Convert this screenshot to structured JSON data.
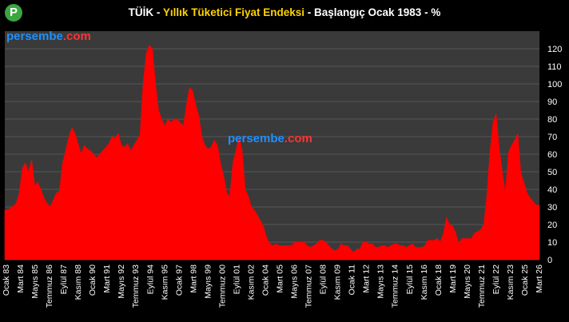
{
  "header": {
    "title_prefix": "TÜİK - ",
    "title_highlight": "Yıllık Tüketici Fiyat Endeksi",
    "title_suffix": " - Başlangıç Ocak 1983 - %"
  },
  "watermark": {
    "part1": "persembe",
    "part2": ".com"
  },
  "logo": {
    "letter": "P"
  },
  "colors": {
    "background": "#000000",
    "plot_bg": "#3a3a3a",
    "grid": "#555555",
    "area": "#ff0000",
    "title_highlight": "#ffd400",
    "watermark_blue": "#1e90ff",
    "watermark_red": "#ff3333",
    "logo_green": "#3aa640"
  },
  "chart_data": {
    "type": "area",
    "title": "TÜİK - Yıllık Tüketici Fiyat Endeksi - Başlangıç Ocak 1983 - %",
    "xlabel": "",
    "ylabel": "",
    "ylim": [
      0,
      130
    ],
    "yticks": [
      0,
      10,
      20,
      30,
      40,
      50,
      60,
      70,
      80,
      90,
      100,
      110,
      120
    ],
    "y_axis_side": "right",
    "grid": true,
    "x_tick_labels": [
      "Ocak 83",
      "Mart 84",
      "Mayıs 85",
      "Temmuz 86",
      "Eylül 87",
      "Kasım 88",
      "Ocak 90",
      "Mart 91",
      "Mayıs 92",
      "Temmuz 93",
      "Eylül 94",
      "Kasım 95",
      "Ocak 97",
      "Mart 98",
      "Mayıs 99",
      "Temmuz 00",
      "Eylül 01",
      "Kasım 02",
      "Ocak 04",
      "Mart 05",
      "Mayıs 06",
      "Temmuz 07",
      "Eylül 08",
      "Kasım 09",
      "Ocak 11",
      "Mart 12",
      "Mayıs 13",
      "Temmuz 14",
      "Eylül 15",
      "Kasım 16",
      "Ocak 18",
      "Mart 19",
      "Mayıs 20",
      "Temmuz 21",
      "Eylül 22",
      "Kasım 23",
      "Ocak 25",
      "Mart 26"
    ],
    "series": [
      {
        "x_start": "1983-01",
        "x_end": "2026-03",
        "points": [
          [
            "1983-01",
            28
          ],
          [
            "1983-06",
            29
          ],
          [
            "1983-12",
            32
          ],
          [
            "1984-03",
            38
          ],
          [
            "1984-06",
            52
          ],
          [
            "1984-09",
            55
          ],
          [
            "1984-12",
            50
          ],
          [
            "1985-03",
            57
          ],
          [
            "1985-06",
            42
          ],
          [
            "1985-09",
            44
          ],
          [
            "1985-12",
            40
          ],
          [
            "1986-03",
            35
          ],
          [
            "1986-06",
            32
          ],
          [
            "1986-09",
            30
          ],
          [
            "1986-12",
            34
          ],
          [
            "1987-03",
            38
          ],
          [
            "1987-06",
            39
          ],
          [
            "1987-09",
            55
          ],
          [
            "1987-12",
            62
          ],
          [
            "1988-03",
            70
          ],
          [
            "1988-06",
            75
          ],
          [
            "1988-09",
            72
          ],
          [
            "1988-12",
            66
          ],
          [
            "1989-03",
            60
          ],
          [
            "1989-06",
            65
          ],
          [
            "1989-09",
            63
          ],
          [
            "1989-12",
            62
          ],
          [
            "1990-03",
            60
          ],
          [
            "1990-06",
            58
          ],
          [
            "1990-09",
            60
          ],
          [
            "1990-12",
            62
          ],
          [
            "1991-03",
            64
          ],
          [
            "1991-06",
            66
          ],
          [
            "1991-09",
            70
          ],
          [
            "1991-12",
            69
          ],
          [
            "1992-03",
            72
          ],
          [
            "1992-06",
            65
          ],
          [
            "1992-09",
            64
          ],
          [
            "1992-12",
            66
          ],
          [
            "1993-03",
            62
          ],
          [
            "1993-06",
            65
          ],
          [
            "1993-09",
            68
          ],
          [
            "1993-12",
            71
          ],
          [
            "1994-03",
            100
          ],
          [
            "1994-06",
            117
          ],
          [
            "1994-09",
            122
          ],
          [
            "1994-12",
            120
          ],
          [
            "1995-03",
            100
          ],
          [
            "1995-06",
            85
          ],
          [
            "1995-09",
            80
          ],
          [
            "1995-12",
            76
          ],
          [
            "1996-03",
            80
          ],
          [
            "1996-06",
            78
          ],
          [
            "1996-09",
            80
          ],
          [
            "1996-12",
            80
          ],
          [
            "1997-03",
            78
          ],
          [
            "1997-06",
            76
          ],
          [
            "1997-09",
            88
          ],
          [
            "1997-12",
            98
          ],
          [
            "1998-03",
            96
          ],
          [
            "1998-06",
            88
          ],
          [
            "1998-09",
            82
          ],
          [
            "1998-12",
            70
          ],
          [
            "1999-03",
            65
          ],
          [
            "1999-06",
            63
          ],
          [
            "1999-09",
            64
          ],
          [
            "1999-12",
            68
          ],
          [
            "2000-03",
            65
          ],
          [
            "2000-06",
            55
          ],
          [
            "2000-09",
            48
          ],
          [
            "2000-12",
            38
          ],
          [
            "2001-03",
            36
          ],
          [
            "2001-06",
            55
          ],
          [
            "2001-09",
            62
          ],
          [
            "2001-12",
            70
          ],
          [
            "2002-03",
            62
          ],
          [
            "2002-06",
            40
          ],
          [
            "2002-09",
            36
          ],
          [
            "2002-12",
            30
          ],
          [
            "2003-03",
            28
          ],
          [
            "2003-06",
            25
          ],
          [
            "2003-09",
            22
          ],
          [
            "2003-12",
            18
          ],
          [
            "2004-03",
            12
          ],
          [
            "2004-06",
            9
          ],
          [
            "2004-09",
            8
          ],
          [
            "2004-12",
            9
          ],
          [
            "2005-03",
            8
          ],
          [
            "2005-06",
            8
          ],
          [
            "2005-09",
            8
          ],
          [
            "2005-12",
            8
          ],
          [
            "2006-03",
            8
          ],
          [
            "2006-06",
            10
          ],
          [
            "2006-09",
            10
          ],
          [
            "2006-12",
            10
          ],
          [
            "2007-03",
            10
          ],
          [
            "2007-06",
            8
          ],
          [
            "2007-09",
            7
          ],
          [
            "2007-12",
            8
          ],
          [
            "2008-03",
            9
          ],
          [
            "2008-06",
            11
          ],
          [
            "2008-09",
            11
          ],
          [
            "2008-12",
            10
          ],
          [
            "2009-03",
            8
          ],
          [
            "2009-06",
            6
          ],
          [
            "2009-09",
            5
          ],
          [
            "2009-12",
            6
          ],
          [
            "2010-03",
            9
          ],
          [
            "2010-06",
            8
          ],
          [
            "2010-09",
            8
          ],
          [
            "2010-12",
            6
          ],
          [
            "2011-03",
            4
          ],
          [
            "2011-06",
            6
          ],
          [
            "2011-09",
            6
          ],
          [
            "2011-12",
            10
          ],
          [
            "2012-03",
            10
          ],
          [
            "2012-06",
            9
          ],
          [
            "2012-09",
            9
          ],
          [
            "2012-12",
            7
          ],
          [
            "2013-03",
            7
          ],
          [
            "2013-06",
            8
          ],
          [
            "2013-09",
            8
          ],
          [
            "2013-12",
            7
          ],
          [
            "2014-03",
            8
          ],
          [
            "2014-06",
            9
          ],
          [
            "2014-09",
            9
          ],
          [
            "2014-12",
            8
          ],
          [
            "2015-03",
            8
          ],
          [
            "2015-06",
            7
          ],
          [
            "2015-09",
            8
          ],
          [
            "2015-12",
            9
          ],
          [
            "2016-03",
            7
          ],
          [
            "2016-06",
            7
          ],
          [
            "2016-09",
            7
          ],
          [
            "2016-12",
            8
          ],
          [
            "2017-03",
            11
          ],
          [
            "2017-06",
            11
          ],
          [
            "2017-09",
            11
          ],
          [
            "2017-12",
            12
          ],
          [
            "2018-03",
            10
          ],
          [
            "2018-06",
            15
          ],
          [
            "2018-09",
            24
          ],
          [
            "2018-12",
            20
          ],
          [
            "2019-03",
            19
          ],
          [
            "2019-06",
            15
          ],
          [
            "2019-09",
            9
          ],
          [
            "2019-12",
            12
          ],
          [
            "2020-03",
            12
          ],
          [
            "2020-06",
            12
          ],
          [
            "2020-09",
            12
          ],
          [
            "2020-12",
            15
          ],
          [
            "2021-03",
            16
          ],
          [
            "2021-06",
            17
          ],
          [
            "2021-09",
            20
          ],
          [
            "2021-12",
            36
          ],
          [
            "2022-03",
            61
          ],
          [
            "2022-06",
            78
          ],
          [
            "2022-09",
            83
          ],
          [
            "2022-12",
            64
          ],
          [
            "2023-03",
            50
          ],
          [
            "2023-06",
            38
          ],
          [
            "2023-09",
            61
          ],
          [
            "2023-12",
            65
          ],
          [
            "2024-03",
            68
          ],
          [
            "2024-06",
            72
          ],
          [
            "2024-09",
            49
          ],
          [
            "2024-12",
            44
          ],
          [
            "2025-03",
            38
          ],
          [
            "2025-06",
            35
          ],
          [
            "2025-09",
            33
          ],
          [
            "2025-12",
            31
          ],
          [
            "2026-03",
            31
          ]
        ]
      }
    ]
  }
}
